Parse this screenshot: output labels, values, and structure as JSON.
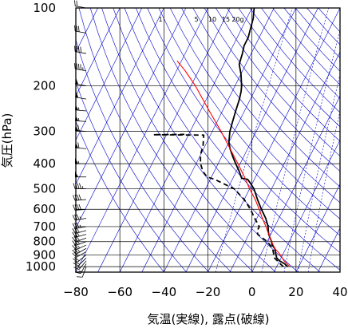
{
  "chart_data": {
    "type": "line",
    "title": "",
    "xlabel": "気温(実線), 露点(破線)",
    "ylabel": "気圧(hPa)",
    "xlim": [
      -80,
      40
    ],
    "ylim": [
      1050,
      100
    ],
    "y_scale": "log",
    "x_ticks": [
      -80,
      -60,
      -40,
      -20,
      0,
      20,
      40
    ],
    "y_ticks": [
      100,
      200,
      300,
      400,
      500,
      600,
      700,
      800,
      900,
      1000
    ],
    "grid": true,
    "mixing_ratio_labels": [
      "1",
      "5",
      "10",
      "15",
      "20g"
    ],
    "colors": {
      "temperature": "#000000",
      "dewpoint": "#000000",
      "parcel": "#ff0000",
      "grid_lines": "#0000cc",
      "axis_grid": "#000000"
    },
    "series": [
      {
        "style": "solid",
        "points": [
          {
            "p": 1000,
            "t": 15
          },
          {
            "p": 975,
            "t": 13
          },
          {
            "p": 950,
            "t": 10
          },
          {
            "p": 925,
            "t": 8
          },
          {
            "p": 900,
            "t": 7
          },
          {
            "p": 875,
            "t": 6
          },
          {
            "p": 850,
            "t": 5
          },
          {
            "p": 825,
            "t": 3
          },
          {
            "p": 800,
            "t": 2
          },
          {
            "p": 775,
            "t": 0.5
          },
          {
            "p": 750,
            "t": -1
          },
          {
            "p": 725,
            "t": -2
          },
          {
            "p": 700,
            "t": -3
          },
          {
            "p": 650,
            "t": -6
          },
          {
            "p": 600,
            "t": -10
          },
          {
            "p": 550,
            "t": -14
          },
          {
            "p": 500,
            "t": -18
          },
          {
            "p": 475,
            "t": -21
          },
          {
            "p": 460,
            "t": -23
          },
          {
            "p": 455,
            "t": -26
          },
          {
            "p": 425,
            "t": -29
          },
          {
            "p": 400,
            "t": -32
          },
          {
            "p": 375,
            "t": -35
          },
          {
            "p": 350,
            "t": -38
          },
          {
            "p": 330,
            "t": -40
          },
          {
            "p": 300,
            "t": -42
          },
          {
            "p": 275,
            "t": -43
          },
          {
            "p": 250,
            "t": -44
          },
          {
            "p": 225,
            "t": -45
          },
          {
            "p": 210,
            "t": -46
          },
          {
            "p": 200,
            "t": -47
          },
          {
            "p": 180,
            "t": -50
          },
          {
            "p": 165,
            "t": -53
          },
          {
            "p": 150,
            "t": -54
          },
          {
            "p": 140,
            "t": -55
          },
          {
            "p": 130,
            "t": -55
          },
          {
            "p": 120,
            "t": -56
          },
          {
            "p": 110,
            "t": -57
          },
          {
            "p": 100,
            "t": -59
          }
        ]
      },
      {
        "style": "dashed",
        "points": [
          {
            "p": 1000,
            "t": 13
          },
          {
            "p": 975,
            "t": 11
          },
          {
            "p": 950,
            "t": 9
          },
          {
            "p": 925,
            "t": 7
          },
          {
            "p": 900,
            "t": 6
          },
          {
            "p": 875,
            "t": 5
          },
          {
            "p": 850,
            "t": 4
          },
          {
            "p": 825,
            "t": 2
          },
          {
            "p": 800,
            "t": 0
          },
          {
            "p": 775,
            "t": -3
          },
          {
            "p": 750,
            "t": -6
          },
          {
            "p": 725,
            "t": -7
          },
          {
            "p": 700,
            "t": -7
          },
          {
            "p": 650,
            "t": -11
          },
          {
            "p": 600,
            "t": -15
          },
          {
            "p": 550,
            "t": -20
          },
          {
            "p": 500,
            "t": -27
          },
          {
            "p": 460,
            "t": -38
          },
          {
            "p": 450,
            "t": -42
          },
          {
            "p": 430,
            "t": -45
          },
          {
            "p": 400,
            "t": -48
          },
          {
            "p": 370,
            "t": -50
          },
          {
            "p": 340,
            "t": -51
          },
          {
            "p": 310,
            "t": -53
          },
          {
            "p": 309,
            "t": -76
          },
          {
            "p": 308,
            "t": -62
          }
        ]
      },
      {
        "style": "parcel",
        "points": [
          {
            "p": 1000,
            "t": 16
          },
          {
            "p": 950,
            "t": 12
          },
          {
            "p": 900,
            "t": 9
          },
          {
            "p": 850,
            "t": 5
          },
          {
            "p": 800,
            "t": 2
          },
          {
            "p": 750,
            "t": -1
          },
          {
            "p": 700,
            "t": -4
          },
          {
            "p": 650,
            "t": -7.5
          },
          {
            "p": 600,
            "t": -11
          },
          {
            "p": 550,
            "t": -15
          },
          {
            "p": 500,
            "t": -20
          },
          {
            "p": 450,
            "t": -25
          },
          {
            "p": 400,
            "t": -31
          },
          {
            "p": 350,
            "t": -38
          },
          {
            "p": 300,
            "t": -46
          },
          {
            "p": 250,
            "t": -56
          },
          {
            "p": 200,
            "t": -68
          },
          {
            "p": 175,
            "t": -76
          },
          {
            "p": 160,
            "t": -82
          }
        ]
      }
    ],
    "wind_barbs": [
      {
        "p": 1000,
        "dir": 200,
        "kt": 10
      },
      {
        "p": 975,
        "dir": 210,
        "kt": 15
      },
      {
        "p": 950,
        "dir": 220,
        "kt": 15
      },
      {
        "p": 925,
        "dir": 225,
        "kt": 20
      },
      {
        "p": 900,
        "dir": 230,
        "kt": 20
      },
      {
        "p": 875,
        "dir": 240,
        "kt": 20
      },
      {
        "p": 850,
        "dir": 240,
        "kt": 25
      },
      {
        "p": 825,
        "dir": 245,
        "kt": 25
      },
      {
        "p": 800,
        "dir": 250,
        "kt": 25
      },
      {
        "p": 775,
        "dir": 250,
        "kt": 30
      },
      {
        "p": 750,
        "dir": 255,
        "kt": 30
      },
      {
        "p": 725,
        "dir": 255,
        "kt": 30
      },
      {
        "p": 700,
        "dir": 260,
        "kt": 35
      },
      {
        "p": 650,
        "dir": 260,
        "kt": 35
      },
      {
        "p": 600,
        "dir": 265,
        "kt": 40
      },
      {
        "p": 550,
        "dir": 265,
        "kt": 40
      },
      {
        "p": 500,
        "dir": 270,
        "kt": 45
      },
      {
        "p": 450,
        "dir": 270,
        "kt": 50
      },
      {
        "p": 400,
        "dir": 270,
        "kt": 55
      },
      {
        "p": 350,
        "dir": 275,
        "kt": 60
      },
      {
        "p": 300,
        "dir": 275,
        "kt": 60
      },
      {
        "p": 275,
        "dir": 275,
        "kt": 55
      },
      {
        "p": 250,
        "dir": 275,
        "kt": 55
      },
      {
        "p": 225,
        "dir": 280,
        "kt": 50
      },
      {
        "p": 200,
        "dir": 280,
        "kt": 50
      },
      {
        "p": 175,
        "dir": 280,
        "kt": 45
      },
      {
        "p": 150,
        "dir": 280,
        "kt": 40
      },
      {
        "p": 125,
        "dir": 280,
        "kt": 30
      },
      {
        "p": 100,
        "dir": 280,
        "kt": 20
      }
    ]
  }
}
